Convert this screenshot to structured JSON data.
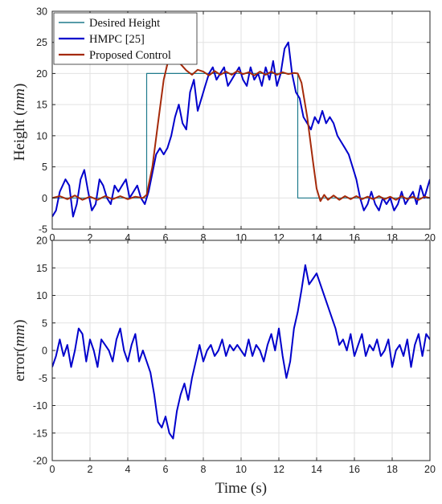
{
  "chart_data": [
    {
      "type": "line",
      "ylabel": "Height",
      "ylabel_unit": "mm",
      "xlim": [
        0,
        20
      ],
      "ylim": [
        -5,
        30
      ],
      "xticks": [
        0,
        2,
        4,
        6,
        8,
        10,
        12,
        14,
        16,
        18,
        20
      ],
      "yticks": [
        -5,
        0,
        5,
        10,
        15,
        20,
        25,
        30
      ],
      "grid": true,
      "legend": "top-left",
      "series": [
        {
          "name": "Desired Height",
          "color": "#1f7a8c",
          "x": [
            0,
            5,
            5,
            13,
            13,
            20
          ],
          "y": [
            0,
            0,
            20,
            20,
            0,
            0
          ]
        },
        {
          "name": "HMPC [25]",
          "color": "#0000cc",
          "x": [
            0,
            0.2,
            0.4,
            0.7,
            0.9,
            1.1,
            1.3,
            1.5,
            1.7,
            1.9,
            2.1,
            2.3,
            2.5,
            2.7,
            2.9,
            3.1,
            3.3,
            3.5,
            3.7,
            3.9,
            4.1,
            4.3,
            4.5,
            4.7,
            4.9,
            5.1,
            5.3,
            5.5,
            5.7,
            5.9,
            6.1,
            6.3,
            6.5,
            6.7,
            6.9,
            7.1,
            7.3,
            7.5,
            7.7,
            7.9,
            8.1,
            8.3,
            8.5,
            8.7,
            8.9,
            9.1,
            9.3,
            9.5,
            9.7,
            9.9,
            10.1,
            10.3,
            10.5,
            10.7,
            10.9,
            11.1,
            11.3,
            11.5,
            11.7,
            11.9,
            12.1,
            12.3,
            12.5,
            12.7,
            12.9,
            13.1,
            13.3,
            13.5,
            13.7,
            13.9,
            14.1,
            14.3,
            14.5,
            14.7,
            14.9,
            15.1,
            15.3,
            15.5,
            15.7,
            15.9,
            16.1,
            16.3,
            16.5,
            16.7,
            16.9,
            17.1,
            17.3,
            17.5,
            17.7,
            17.9,
            18.1,
            18.3,
            18.5,
            18.7,
            18.9,
            19.1,
            19.3,
            19.5,
            19.7,
            19.9,
            20
          ],
          "y": [
            -3,
            -2,
            1,
            3,
            2,
            -3,
            -1,
            3,
            4.5,
            1,
            -2,
            -1,
            3,
            2,
            0,
            -1,
            2,
            1,
            2,
            3,
            0,
            1,
            2,
            0,
            -1,
            1,
            4,
            7,
            8,
            7,
            8,
            10,
            13,
            15,
            12,
            11,
            17,
            19,
            14,
            16,
            18,
            20,
            21,
            19,
            20,
            21,
            18,
            19,
            20,
            21,
            19,
            18,
            21,
            19,
            20,
            18,
            21,
            19,
            22,
            18,
            20,
            24,
            25,
            20,
            17,
            16,
            13,
            12,
            11,
            13,
            12,
            14,
            12,
            13,
            12,
            10,
            9,
            8,
            7,
            5,
            3,
            0,
            -2,
            -1,
            1,
            -1,
            -2,
            0,
            -1,
            0,
            -2,
            -1,
            1,
            -1,
            0,
            1,
            -1,
            2,
            0,
            2,
            3
          ]
        },
        {
          "name": "Proposed Control",
          "color": "#a52a0a",
          "x": [
            0,
            0.4,
            0.8,
            1.2,
            1.6,
            2,
            2.4,
            2.8,
            3.2,
            3.6,
            4,
            4.4,
            4.8,
            5.0,
            5.3,
            5.6,
            5.9,
            6.1,
            6.3,
            6.5,
            6.8,
            7.1,
            7.4,
            7.7,
            8.0,
            8.3,
            8.6,
            8.9,
            9.2,
            9.5,
            9.8,
            10.1,
            10.4,
            10.7,
            11.0,
            11.3,
            11.6,
            11.9,
            12.2,
            12.5,
            12.8,
            13.0,
            13.2,
            13.5,
            13.8,
            14.0,
            14.2,
            14.4,
            14.6,
            14.9,
            15.2,
            15.5,
            15.8,
            16.1,
            16.4,
            16.7,
            17.0,
            17.3,
            17.6,
            17.9,
            18.2,
            18.5,
            18.8,
            19.1,
            19.4,
            19.7,
            20
          ],
          "y": [
            0,
            0.3,
            -0.2,
            0.4,
            -0.3,
            0.2,
            -0.3,
            0.3,
            -0.2,
            0.3,
            -0.2,
            0.2,
            0,
            0.5,
            5,
            12,
            19,
            21.5,
            22,
            22,
            21.5,
            20.5,
            19.8,
            20.6,
            20.3,
            19.7,
            20.4,
            19.8,
            20.3,
            19.8,
            20.4,
            19.9,
            20.2,
            19.7,
            20.3,
            19.8,
            20.3,
            19.8,
            20.2,
            19.9,
            20.1,
            20,
            18.5,
            13,
            6,
            1.5,
            -0.5,
            0.5,
            -0.3,
            0.4,
            -0.3,
            0.3,
            -0.2,
            0.3,
            -0.2,
            0.2,
            -0.2,
            0.3,
            -0.2,
            0.2,
            -0.3,
            0.3,
            -0.2,
            0.2,
            -0.3,
            0.2,
            0
          ]
        }
      ]
    },
    {
      "type": "line",
      "ylabel": "error",
      "ylabel_unit": "mm",
      "xlabel": "Time (s)",
      "xlim": [
        0,
        20
      ],
      "ylim": [
        -20,
        20
      ],
      "xticks": [
        0,
        2,
        4,
        6,
        8,
        10,
        12,
        14,
        16,
        18,
        20
      ],
      "yticks": [
        -20,
        -15,
        -10,
        -5,
        0,
        5,
        10,
        15,
        20
      ],
      "grid": true,
      "series": [
        {
          "color": "#0000cc",
          "x": [
            0,
            0.2,
            0.4,
            0.6,
            0.8,
            1.0,
            1.2,
            1.4,
            1.6,
            1.8,
            2.0,
            2.2,
            2.4,
            2.6,
            2.8,
            3.0,
            3.2,
            3.4,
            3.6,
            3.8,
            4.0,
            4.2,
            4.4,
            4.6,
            4.8,
            5.0,
            5.2,
            5.4,
            5.6,
            5.8,
            6.0,
            6.2,
            6.4,
            6.6,
            6.8,
            7.0,
            7.2,
            7.4,
            7.6,
            7.8,
            8.0,
            8.2,
            8.4,
            8.6,
            8.8,
            9.0,
            9.2,
            9.4,
            9.6,
            9.8,
            10.0,
            10.2,
            10.4,
            10.6,
            10.8,
            11.0,
            11.2,
            11.4,
            11.6,
            11.8,
            12.0,
            12.2,
            12.4,
            12.6,
            12.8,
            13.0,
            13.2,
            13.4,
            13.6,
            13.8,
            14.0,
            14.2,
            14.4,
            14.6,
            14.8,
            15.0,
            15.2,
            15.4,
            15.6,
            15.8,
            16.0,
            16.2,
            16.4,
            16.6,
            16.8,
            17.0,
            17.2,
            17.4,
            17.6,
            17.8,
            18.0,
            18.2,
            18.4,
            18.6,
            18.8,
            19.0,
            19.2,
            19.4,
            19.6,
            19.8,
            20
          ],
          "y": [
            -3,
            -1,
            2,
            -1,
            1,
            -3,
            0,
            4,
            3,
            -2,
            2,
            0,
            -3,
            2,
            1,
            0,
            -2,
            2,
            4,
            0,
            -2,
            1,
            3,
            -2,
            0,
            -2,
            -4,
            -8,
            -13,
            -14,
            -12,
            -15,
            -16,
            -11,
            -8,
            -6,
            -9,
            -5,
            -2,
            1,
            -2,
            0,
            1,
            -1,
            0,
            2,
            -1,
            1,
            0,
            1,
            0,
            -1,
            2,
            -1,
            1,
            0,
            -2,
            1,
            3,
            0,
            4,
            -1,
            -5,
            -2,
            4,
            7,
            11,
            15.5,
            12,
            13,
            14,
            12,
            10,
            8,
            6,
            4,
            1,
            2,
            0,
            3,
            -1,
            1,
            3,
            -1,
            1,
            0,
            2,
            -1,
            0,
            2,
            -3,
            0,
            1,
            -1,
            2,
            -3,
            1,
            3,
            -1,
            3,
            2
          ]
        }
      ]
    }
  ]
}
